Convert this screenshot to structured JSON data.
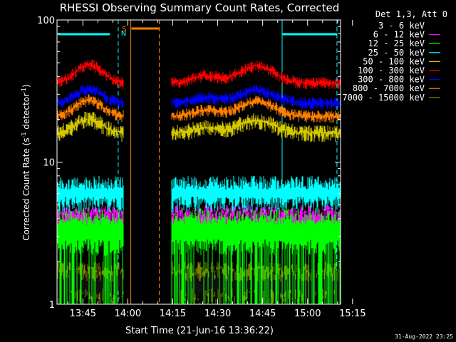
{
  "chart_data": {
    "type": "line",
    "title": "RHESSI Observing Summary Count Rates, Corrected",
    "xlabel": "Start Time (21-Jun-16 13:36:22)",
    "ylabel": "Corrected Count Rate (s",
    "ylabel_sup1": "-1",
    "ylabel_mid": " detector",
    "ylabel_sup2": "-1",
    "ylabel_end": ")",
    "yscale": "log",
    "ylim": [
      1,
      100
    ],
    "y_ticks": [
      {
        "value": 1,
        "label": "1"
      },
      {
        "value": 10,
        "label": "10"
      },
      {
        "value": 100,
        "label": "100"
      }
    ],
    "xlim_min": [
      36.37,
      131.0
    ],
    "x_ticks": [
      {
        "min": 45,
        "label": "13:45"
      },
      {
        "min": 60,
        "label": "14:00"
      },
      {
        "min": 75,
        "label": "14:15"
      },
      {
        "min": 90,
        "label": "14:30"
      },
      {
        "min": 105,
        "label": "14:45"
      },
      {
        "min": 120,
        "label": "15:00"
      },
      {
        "min": 135,
        "label": "15:15"
      }
    ],
    "legend": {
      "title": "Det 1,3, Att 0",
      "placement": "right"
    },
    "series": [
      {
        "name": "3 - 6 keV",
        "color": "#000000",
        "approx": "1-2"
      },
      {
        "name": "6 - 12 keV",
        "color": "#ff00ff",
        "approx": "4-5"
      },
      {
        "name": "12 - 25 keV",
        "color": "#00ff00",
        "approx": "3-5"
      },
      {
        "name": "25 - 50 keV",
        "color": "#00ffff",
        "approx": "5-8"
      },
      {
        "name": "50 - 100 keV",
        "color": "#d4c800",
        "approx": "15-22"
      },
      {
        "name": "100 - 300 keV",
        "color": "#ff0000",
        "approx": "36-52"
      },
      {
        "name": "300 - 800 keV",
        "color": "#0000ff",
        "approx": "26-34"
      },
      {
        "name": "800 - 7000 keV",
        "color": "#ff7f00",
        "approx": "20-28"
      },
      {
        "name": "7000 - 15000 keV",
        "color": "#808000",
        "approx": "1-2"
      }
    ],
    "segments_min": [
      [
        36.37,
        58.5
      ],
      [
        74.5,
        131.0
      ]
    ],
    "flags": [
      {
        "label": "N",
        "color": "#00ffff"
      },
      {
        "label": "S",
        "color": "#ff7f00"
      }
    ],
    "timestamp": "31-Aug-2022 23:25"
  }
}
